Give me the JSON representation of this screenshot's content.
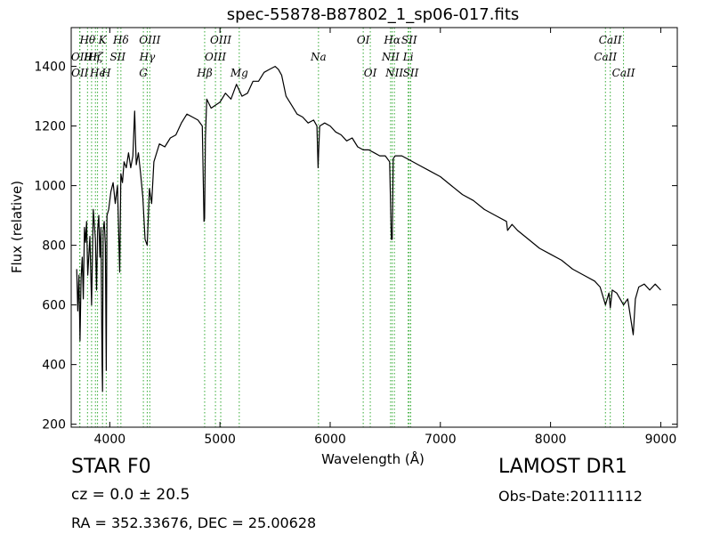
{
  "chart_data": {
    "type": "line",
    "title": "spec-55878-B87802_1_sp06-017.fits",
    "xlabel": "Wavelength (Å)",
    "ylabel": "Flux (relative)",
    "xlim": [
      3650,
      9150
    ],
    "ylim": [
      190,
      1530
    ],
    "xticks": [
      4000,
      5000,
      6000,
      7000,
      8000,
      9000
    ],
    "yticks": [
      200,
      400,
      600,
      800,
      1000,
      1200,
      1400
    ],
    "grid": false,
    "line_color": "#000000",
    "marker_color": "#33aa33",
    "spectrum": {
      "x": [
        3700,
        3710,
        3720,
        3730,
        3740,
        3750,
        3760,
        3770,
        3780,
        3790,
        3800,
        3820,
        3835,
        3850,
        3870,
        3880,
        3890,
        3900,
        3910,
        3920,
        3930,
        3934,
        3940,
        3950,
        3960,
        3968,
        3975,
        3990,
        4010,
        4030,
        4050,
        4070,
        4090,
        4101,
        4115,
        4130,
        4150,
        4170,
        4190,
        4210,
        4226,
        4240,
        4260,
        4280,
        4300,
        4320,
        4340,
        4360,
        4380,
        4400,
        4450,
        4500,
        4550,
        4600,
        4650,
        4700,
        4750,
        4800,
        4840,
        4855,
        4861,
        4868,
        4880,
        4920,
        4960,
        5000,
        5050,
        5100,
        5150,
        5200,
        5250,
        5300,
        5350,
        5400,
        5450,
        5500,
        5530,
        5560,
        5600,
        5650,
        5700,
        5750,
        5800,
        5850,
        5880,
        5890,
        5896,
        5905,
        5950,
        6000,
        6050,
        6100,
        6150,
        6200,
        6250,
        6300,
        6350,
        6400,
        6450,
        6500,
        6540,
        6555,
        6563,
        6572,
        6590,
        6650,
        6700,
        6800,
        6900,
        7000,
        7100,
        7200,
        7300,
        7400,
        7500,
        7600,
        7610,
        7650,
        7700,
        7800,
        7900,
        8000,
        8100,
        8200,
        8300,
        8400,
        8450,
        8498,
        8530,
        8542,
        8560,
        8600,
        8662,
        8700,
        8750,
        8770,
        8800,
        8850,
        8900,
        8950,
        9000
      ],
      "y": [
        720,
        580,
        700,
        480,
        690,
        760,
        620,
        860,
        810,
        880,
        700,
        830,
        600,
        920,
        820,
        650,
        850,
        900,
        760,
        860,
        400,
        310,
        850,
        880,
        800,
        380,
        900,
        920,
        980,
        1010,
        940,
        1000,
        710,
        1040,
        1010,
        1080,
        1060,
        1110,
        1060,
        1100,
        1250,
        1070,
        1110,
        1040,
        960,
        820,
        800,
        990,
        940,
        1080,
        1140,
        1130,
        1160,
        1170,
        1210,
        1240,
        1230,
        1220,
        1200,
        880,
        890,
        1160,
        1290,
        1260,
        1270,
        1280,
        1310,
        1290,
        1340,
        1300,
        1310,
        1350,
        1350,
        1380,
        1390,
        1400,
        1390,
        1370,
        1300,
        1270,
        1240,
        1230,
        1210,
        1220,
        1200,
        1060,
        1120,
        1200,
        1210,
        1200,
        1180,
        1170,
        1150,
        1160,
        1130,
        1120,
        1120,
        1110,
        1100,
        1100,
        1080,
        820,
        820,
        1090,
        1100,
        1100,
        1090,
        1070,
        1050,
        1030,
        1000,
        970,
        950,
        920,
        900,
        880,
        850,
        870,
        850,
        820,
        790,
        770,
        750,
        720,
        700,
        680,
        660,
        600,
        640,
        590,
        650,
        640,
        600,
        620,
        500,
        620,
        660,
        670,
        650,
        670,
        650
      ]
    },
    "line_markers": [
      {
        "label": "Hθ",
        "x": 3798,
        "row": 0
      },
      {
        "label": "Hη",
        "x": 3835,
        "row": 1
      },
      {
        "label": "OII",
        "x": 3727,
        "row": 1
      },
      {
        "label": "OII",
        "x": 3729,
        "row": 2
      },
      {
        "label": "Hϵ",
        "x": 3889,
        "row": 2
      },
      {
        "label": "Hζ",
        "x": 3870,
        "row": 1
      },
      {
        "label": "K",
        "x": 3934,
        "row": 0
      },
      {
        "label": "SII",
        "x": 4072,
        "row": 1
      },
      {
        "label": "H",
        "x": 3968,
        "row": 2
      },
      {
        "label": "Hδ",
        "x": 4101,
        "row": 0
      },
      {
        "label": "OIII",
        "x": 4363,
        "row": 0
      },
      {
        "label": "Hγ",
        "x": 4340,
        "row": 1
      },
      {
        "label": "G",
        "x": 4305,
        "row": 2
      },
      {
        "label": "OIII",
        "x": 5007,
        "row": 0
      },
      {
        "label": "OIII",
        "x": 4959,
        "row": 1
      },
      {
        "label": "Hβ",
        "x": 4861,
        "row": 2
      },
      {
        "label": "Mg",
        "x": 5175,
        "row": 2
      },
      {
        "label": "Na",
        "x": 5894,
        "row": 1
      },
      {
        "label": "OI",
        "x": 6300,
        "row": 0
      },
      {
        "label": "OI",
        "x": 6364,
        "row": 2
      },
      {
        "label": "Hα",
        "x": 6563,
        "row": 0
      },
      {
        "label": "NII",
        "x": 6548,
        "row": 1
      },
      {
        "label": "NII",
        "x": 6583,
        "row": 2
      },
      {
        "label": "SII",
        "x": 6717,
        "row": 0
      },
      {
        "label": "Li",
        "x": 6708,
        "row": 1
      },
      {
        "label": "SII",
        "x": 6731,
        "row": 2
      },
      {
        "label": "CaII",
        "x": 8542,
        "row": 0
      },
      {
        "label": "CaII",
        "x": 8498,
        "row": 1
      },
      {
        "label": "CaII",
        "x": 8662,
        "row": 2
      }
    ]
  },
  "info": {
    "object_class": "STAR   F0",
    "survey": "LAMOST DR1",
    "redshift": "cz = 0.0 ± 20.5",
    "obs_date": "Obs-Date:20111112",
    "radec": "RA = 352.33676, DEC = 25.00628"
  }
}
